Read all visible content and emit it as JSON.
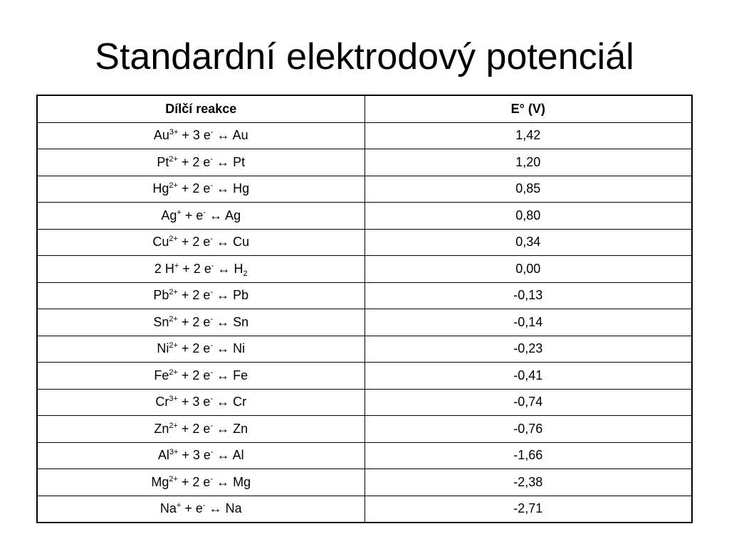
{
  "header": {
    "title": "Standardní elektrodový potenciál"
  },
  "table": {
    "columns": [
      "Dílčí reakce",
      "E° (V)"
    ],
    "rows": [
      {
        "reaction": [
          {
            "text": "Au"
          },
          {
            "sup": "3+"
          },
          {
            "text": " + 3 e"
          },
          {
            "sup": "-"
          },
          {
            "text": " ↔ Au"
          }
        ],
        "potential": "1,42"
      },
      {
        "reaction": [
          {
            "text": "Pt"
          },
          {
            "sup": "2+"
          },
          {
            "text": " + 2 e"
          },
          {
            "sup": "-"
          },
          {
            "text": " ↔ Pt"
          }
        ],
        "potential": "1,20"
      },
      {
        "reaction": [
          {
            "text": "Hg"
          },
          {
            "sup": "2+"
          },
          {
            "text": " + 2 e"
          },
          {
            "sup": "-"
          },
          {
            "text": " ↔ Hg"
          }
        ],
        "potential": "0,85"
      },
      {
        "reaction": [
          {
            "text": "Ag"
          },
          {
            "sup": "+"
          },
          {
            "text": " + e"
          },
          {
            "sup": "-"
          },
          {
            "text": " ↔ Ag"
          }
        ],
        "potential": "0,80"
      },
      {
        "reaction": [
          {
            "text": "Cu"
          },
          {
            "sup": "2+"
          },
          {
            "text": " + 2 e"
          },
          {
            "sup": "-"
          },
          {
            "text": " ↔ Cu"
          }
        ],
        "potential": "0,34"
      },
      {
        "reaction": [
          {
            "text": "2 H"
          },
          {
            "sup": "+"
          },
          {
            "text": " + 2 e"
          },
          {
            "sup": "-"
          },
          {
            "text": " ↔ H"
          },
          {
            "sub": "2"
          }
        ],
        "potential": "0,00"
      },
      {
        "reaction": [
          {
            "text": "Pb"
          },
          {
            "sup": "2+"
          },
          {
            "text": " + 2 e"
          },
          {
            "sup": "-"
          },
          {
            "text": " ↔ Pb"
          }
        ],
        "potential": "-0,13"
      },
      {
        "reaction": [
          {
            "text": "Sn"
          },
          {
            "sup": "2+"
          },
          {
            "text": " + 2 e"
          },
          {
            "sup": "-"
          },
          {
            "text": " ↔ Sn"
          }
        ],
        "potential": "-0,14"
      },
      {
        "reaction": [
          {
            "text": "Ni"
          },
          {
            "sup": "2+"
          },
          {
            "text": " + 2 e"
          },
          {
            "sup": "-"
          },
          {
            "text": " ↔ Ni"
          }
        ],
        "potential": "-0,23"
      },
      {
        "reaction": [
          {
            "text": "Fe"
          },
          {
            "sup": "2+"
          },
          {
            "text": " + 2 e"
          },
          {
            "sup": "-"
          },
          {
            "text": " ↔ Fe"
          }
        ],
        "potential": "-0,41"
      },
      {
        "reaction": [
          {
            "text": "Cr"
          },
          {
            "sup": "3+"
          },
          {
            "text": " + 3 e"
          },
          {
            "sup": "-"
          },
          {
            "text": " ↔ Cr"
          }
        ],
        "potential": "-0,74"
      },
      {
        "reaction": [
          {
            "text": "Zn"
          },
          {
            "sup": "2+"
          },
          {
            "text": " + 2 e"
          },
          {
            "sup": "-"
          },
          {
            "text": " ↔ Zn"
          }
        ],
        "potential": "-0,76"
      },
      {
        "reaction": [
          {
            "text": "Al"
          },
          {
            "sup": "3+"
          },
          {
            "text": " + 3 e"
          },
          {
            "sup": "-"
          },
          {
            "text": " ↔ Al"
          }
        ],
        "potential": "-1,66"
      },
      {
        "reaction": [
          {
            "text": "Mg"
          },
          {
            "sup": "2+"
          },
          {
            "text": " + 2 e"
          },
          {
            "sup": "-"
          },
          {
            "text": " ↔ Mg"
          }
        ],
        "potential": "-2,38"
      },
      {
        "reaction": [
          {
            "text": "Na"
          },
          {
            "sup": "+"
          },
          {
            "text": " + e"
          },
          {
            "sup": "-"
          },
          {
            "text": " ↔ Na"
          }
        ],
        "potential": "-2,71"
      }
    ]
  }
}
